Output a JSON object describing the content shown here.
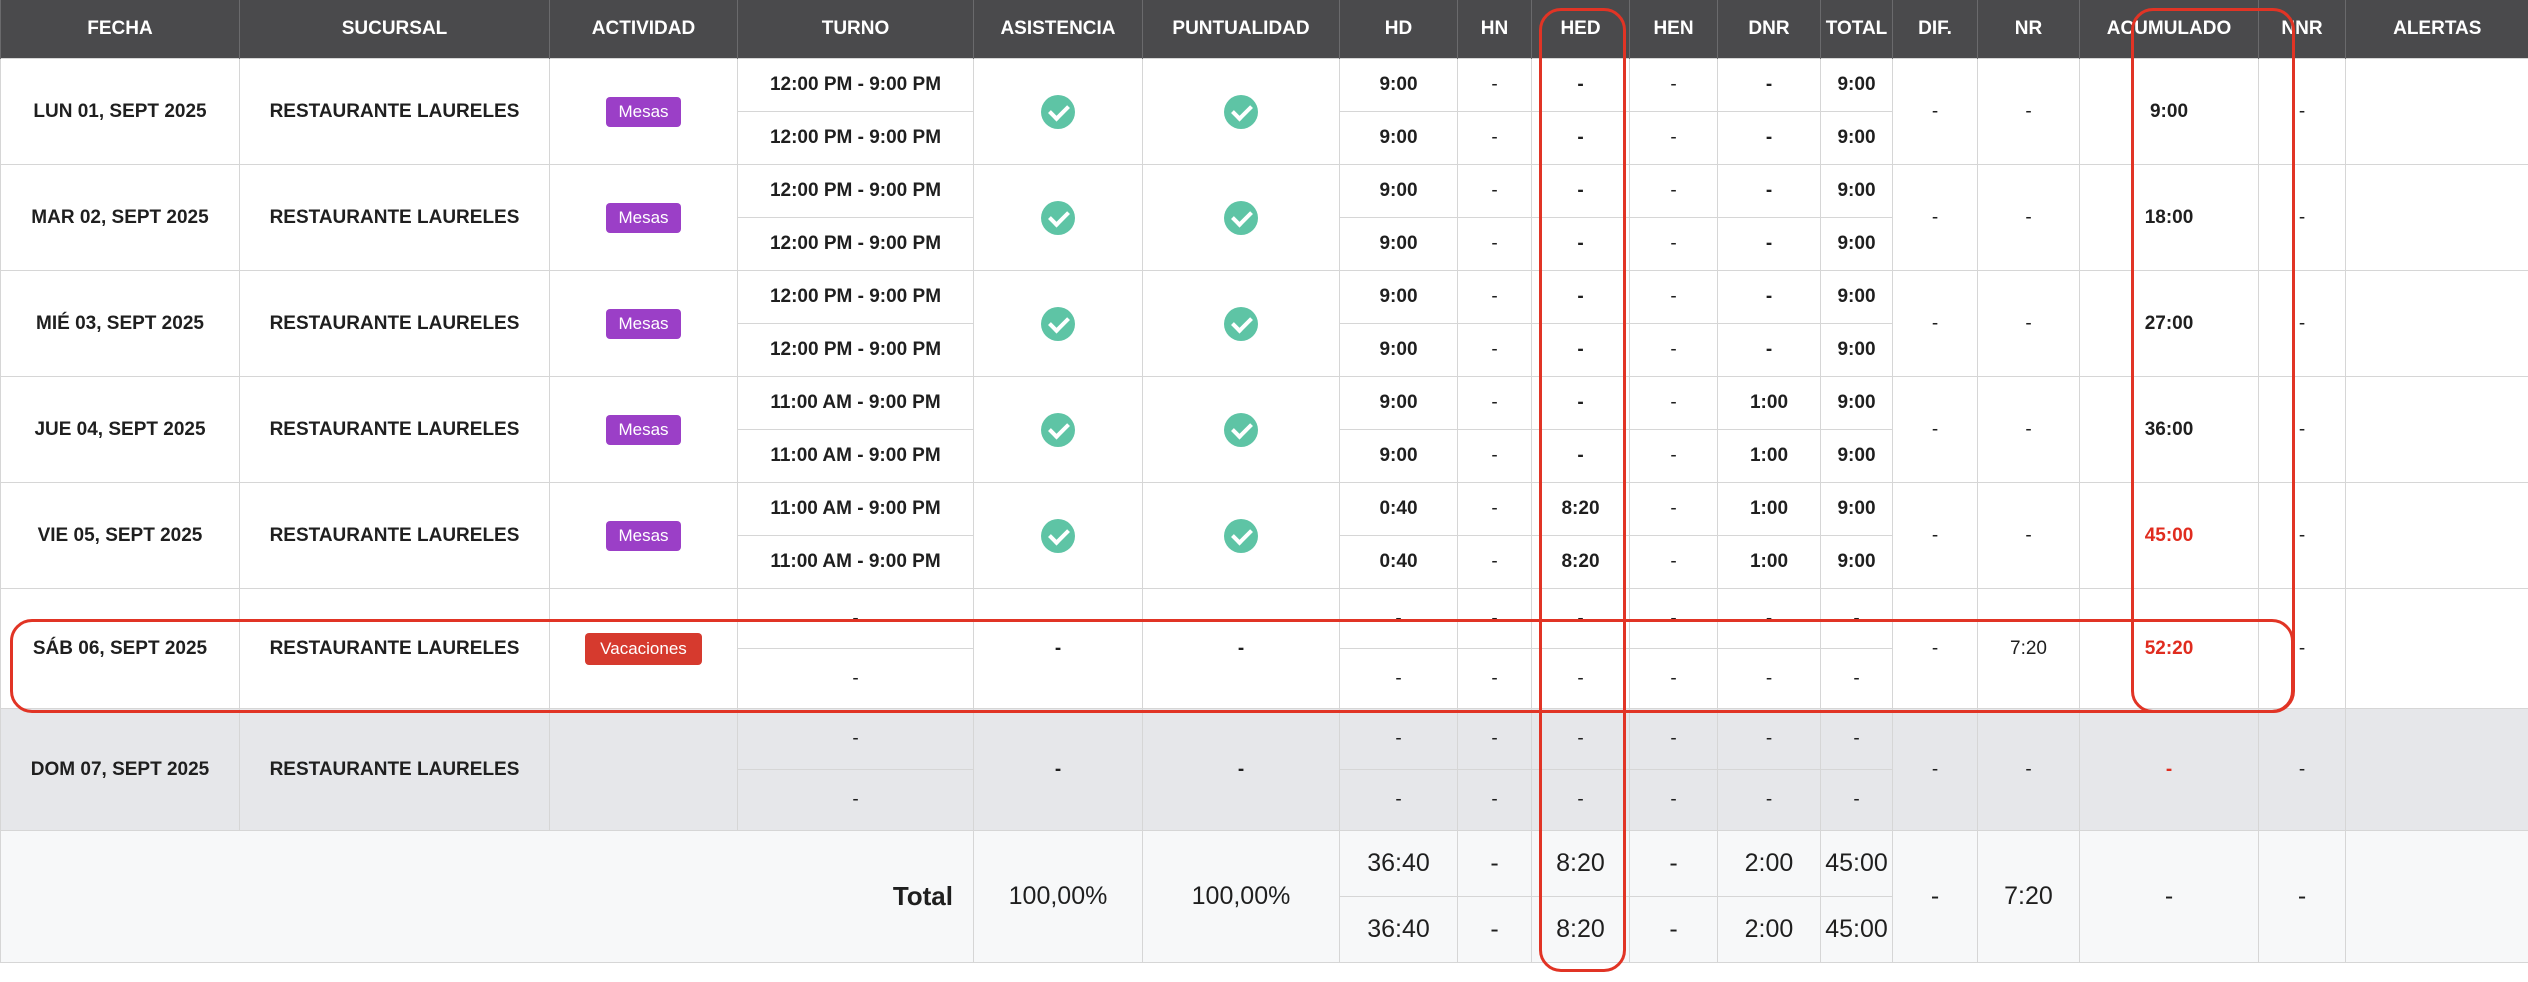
{
  "headers": [
    "FECHA",
    "SUCURSAL",
    "ACTIVIDAD",
    "TURNO",
    "ASISTENCIA",
    "PUNTUALIDAD",
    "HD",
    "HN",
    "HED",
    "HEN",
    "DNR",
    "TOTAL",
    "DIF.",
    "NR",
    "ACUMULADO",
    "NNR",
    "ALERTAS"
  ],
  "rows": [
    {
      "fecha": "LUN 01, SEPT 2025",
      "sucursal": "RESTAURANTE LAURELES",
      "actividad": "Mesas",
      "turno": [
        "12:00 PM - 9:00 PM",
        "12:00 PM - 9:00 PM"
      ],
      "hd": [
        "9:00",
        "9:00"
      ],
      "hn": [
        "-",
        "-"
      ],
      "hed": [
        "-",
        "-"
      ],
      "hen": [
        "-",
        "-"
      ],
      "dnr": [
        "-",
        "-"
      ],
      "total": [
        "9:00",
        "9:00"
      ],
      "dif": "-",
      "nr": "-",
      "acumulado": "9:00",
      "nnr": "-"
    },
    {
      "fecha": "MAR 02, SEPT 2025",
      "sucursal": "RESTAURANTE LAURELES",
      "actividad": "Mesas",
      "turno": [
        "12:00 PM - 9:00 PM",
        "12:00 PM - 9:00 PM"
      ],
      "hd": [
        "9:00",
        "9:00"
      ],
      "hn": [
        "-",
        "-"
      ],
      "hed": [
        "-",
        "-"
      ],
      "hen": [
        "-",
        "-"
      ],
      "dnr": [
        "-",
        "-"
      ],
      "total": [
        "9:00",
        "9:00"
      ],
      "dif": "-",
      "nr": "-",
      "acumulado": "18:00",
      "nnr": "-"
    },
    {
      "fecha": "MIÉ 03, SEPT 2025",
      "sucursal": "RESTAURANTE LAURELES",
      "actividad": "Mesas",
      "turno": [
        "12:00 PM - 9:00 PM",
        "12:00 PM - 9:00 PM"
      ],
      "hd": [
        "9:00",
        "9:00"
      ],
      "hn": [
        "-",
        "-"
      ],
      "hed": [
        "-",
        "-"
      ],
      "hen": [
        "-",
        "-"
      ],
      "dnr": [
        "-",
        "-"
      ],
      "total": [
        "9:00",
        "9:00"
      ],
      "dif": "-",
      "nr": "-",
      "acumulado": "27:00",
      "nnr": "-"
    },
    {
      "fecha": "JUE 04, SEPT 2025",
      "sucursal": "RESTAURANTE LAURELES",
      "actividad": "Mesas",
      "turno": [
        "11:00 AM - 9:00 PM",
        "11:00 AM - 9:00 PM"
      ],
      "hd": [
        "9:00",
        "9:00"
      ],
      "hn": [
        "-",
        "-"
      ],
      "hed": [
        "-",
        "-"
      ],
      "hen": [
        "-",
        "-"
      ],
      "dnr": [
        "1:00",
        "1:00"
      ],
      "total": [
        "9:00",
        "9:00"
      ],
      "dif": "-",
      "nr": "-",
      "acumulado": "36:00",
      "nnr": "-"
    },
    {
      "fecha": "VIE 05, SEPT 2025",
      "sucursal": "RESTAURANTE LAURELES",
      "actividad": "Mesas",
      "turno": [
        "11:00 AM - 9:00 PM",
        "11:00 AM - 9:00 PM"
      ],
      "hd": [
        "0:40",
        "0:40"
      ],
      "hn": [
        "-",
        "-"
      ],
      "hed": [
        "8:20",
        "8:20"
      ],
      "hen": [
        "-",
        "-"
      ],
      "dnr": [
        "1:00",
        "1:00"
      ],
      "total": [
        "9:00",
        "9:00"
      ],
      "dif": "-",
      "nr": "-",
      "acumulado": "45:00",
      "nnr": "-"
    }
  ],
  "saturday": {
    "fecha": "SÁB 06, SEPT 2025",
    "sucursal": "RESTAURANTE LAURELES",
    "actividad": "Vacaciones",
    "turno": [
      "-",
      "-"
    ],
    "asistencia": "-",
    "puntualidad": "-",
    "hd": [
      "-",
      "-"
    ],
    "hn": [
      "-",
      "-"
    ],
    "hed": [
      "-",
      "-"
    ],
    "hen": [
      "-",
      "-"
    ],
    "dnr": [
      "-",
      "-"
    ],
    "total": [
      "-",
      "-"
    ],
    "dif": "-",
    "nr": "7:20",
    "acumulado": "52:20",
    "nnr": "-"
  },
  "sunday": {
    "fecha": "DOM 07, SEPT 2025",
    "sucursal": "RESTAURANTE LAURELES",
    "turno": [
      "-",
      "-"
    ],
    "asistencia": "-",
    "puntualidad": "-",
    "hd": [
      "-",
      "-"
    ],
    "hn": [
      "-",
      "-"
    ],
    "hed": [
      "-",
      "-"
    ],
    "hen": [
      "-",
      "-"
    ],
    "dnr": [
      "-",
      "-"
    ],
    "total": [
      "-",
      "-"
    ],
    "dif": "-",
    "nr": "-",
    "acumulado": "-",
    "nnr": "-"
  },
  "totals": {
    "label": "Total",
    "asistencia": "100,00%",
    "puntualidad": "100,00%",
    "hd": [
      "36:40",
      "36:40"
    ],
    "hn": [
      "-",
      "-"
    ],
    "hed": [
      "8:20",
      "8:20"
    ],
    "hen": [
      "-",
      "-"
    ],
    "dnr": [
      "2:00",
      "2:00"
    ],
    "total": [
      "45:00",
      "45:00"
    ],
    "dif": "-",
    "nr": "7:20",
    "acumulado": "-",
    "nnr": "-"
  },
  "colors": {
    "header_bg": "#4a4a4c",
    "badge_mesas": "#9b3fc7",
    "badge_vacaciones": "#d63a2e",
    "check": "#5ec4a5",
    "highlight": "#e13425",
    "alert_text": "#e02c1f"
  },
  "icons": {
    "check": "check-circle-icon"
  }
}
